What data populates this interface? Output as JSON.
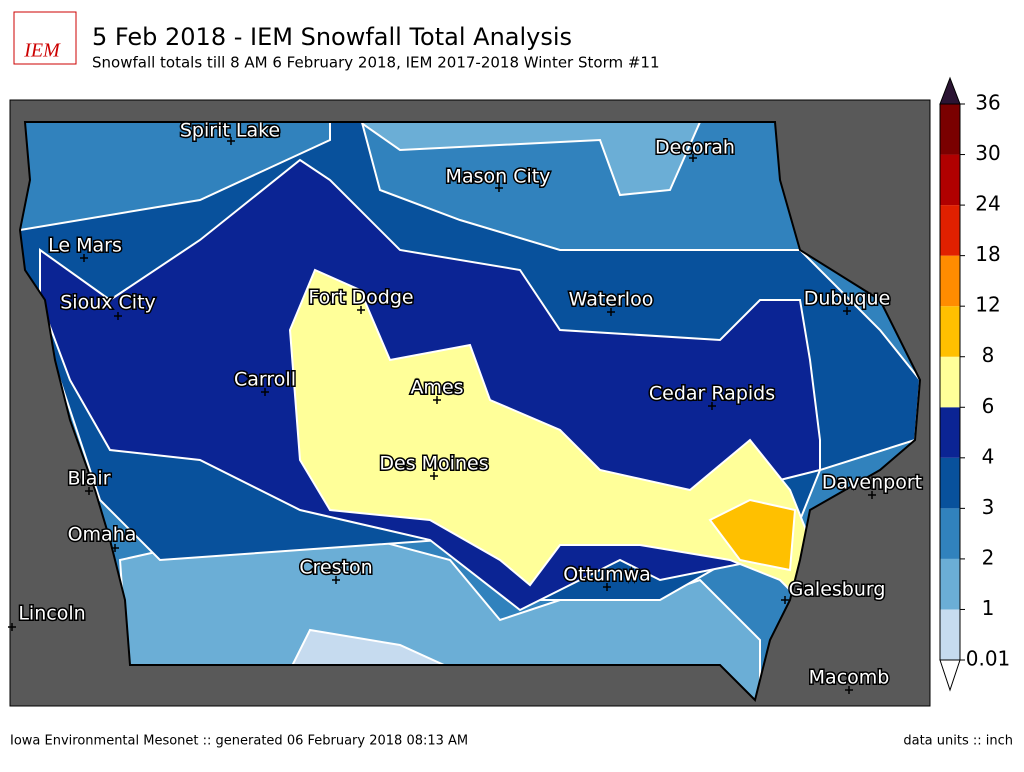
{
  "header": {
    "logo": "IEM",
    "title": "5 Feb 2018 - IEM Snowfall Total Analysis",
    "subtitle": "Snowfall totals till 8 AM 6 February 2018, IEM 2017-2018 Winter Storm #11"
  },
  "cities": [
    "Spirit Lake",
    "Mason City",
    "Decorah",
    "Le Mars",
    "Sioux City",
    "Fort Dodge",
    "Waterloo",
    "Dubuque",
    "Carroll",
    "Ames",
    "Cedar Rapids",
    "Des Moines",
    "Blair",
    "Davenport",
    "Omaha",
    "Creston",
    "Ottumwa",
    "Galesburg",
    "Lincoln",
    "Macomb"
  ],
  "legend": {
    "levels": [
      0.01,
      1,
      2,
      3,
      4,
      6,
      8,
      12,
      18,
      24,
      30,
      36
    ],
    "colors": [
      "#c6dbef",
      "#6baed6",
      "#3182bd",
      "#08519c",
      "#0b2494",
      "#ffff99",
      "#ffc000",
      "#ff8c00",
      "#e02000",
      "#b00000",
      "#7a0000"
    ],
    "under_color": "#ffffff",
    "over_color": "#2b1433"
  },
  "footer": {
    "left": "Iowa Environmental Mesonet :: generated 06 February 2018 08:13 AM",
    "right": "data units :: inch"
  }
}
